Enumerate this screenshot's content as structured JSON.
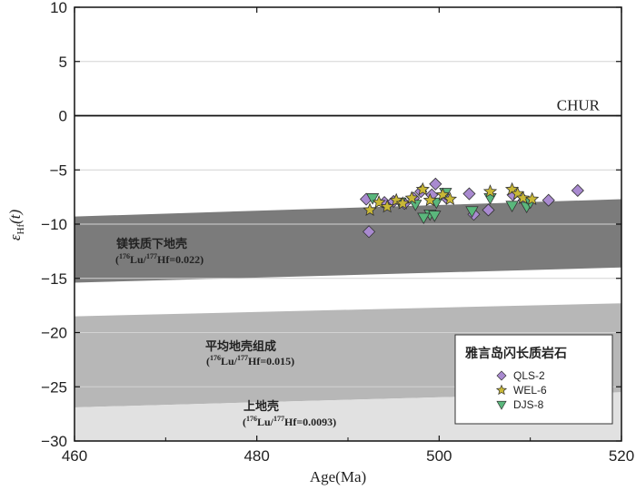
{
  "chart_data": {
    "type": "scatter",
    "xlabel": "Age(Ma)",
    "ylabel_symbol": "ε",
    "ylabel_sub": "Hf",
    "ylabel_suffix": "(t)",
    "xlim": [
      460,
      520
    ],
    "ylim": [
      -30,
      10
    ],
    "xticks": [
      "460",
      "480",
      "500",
      "520"
    ],
    "yticks": [
      "10",
      "5",
      "0",
      "−5",
      "−10",
      "−15",
      "−20",
      "−25",
      "−30"
    ],
    "grid": "horizontal",
    "reference_line": {
      "label": "CHUR",
      "y": 0
    },
    "bands": [
      {
        "name": "镁铁质下地壳",
        "ratio": "Hf=0.022)",
        "color": "#7b7b7b",
        "top": [
          [
            460,
            -9.3
          ],
          [
            520,
            -7.7
          ]
        ],
        "bottom": [
          [
            460,
            -15.4
          ],
          [
            520,
            -14.0
          ]
        ]
      },
      {
        "name": "平均地壳组成",
        "ratio": "Hf=0.015)",
        "color": "#b7b7b7",
        "top": [
          [
            460,
            -18.5
          ],
          [
            520,
            -17.3
          ]
        ],
        "bottom": [
          [
            460,
            -26.9
          ],
          [
            520,
            -25.5
          ]
        ]
      },
      {
        "name": "上地壳",
        "ratio": "Hf=0.0093)",
        "color": "#e1e1e1",
        "top": [
          [
            460,
            -26.9
          ],
          [
            520,
            -25.5
          ]
        ],
        "bottom": [
          [
            460,
            -30
          ],
          [
            520,
            -30
          ]
        ]
      }
    ],
    "legend": {
      "title": "雅言岛闪长质岩石",
      "placement": "bottom-right"
    },
    "series": [
      {
        "name": "QLS-2",
        "marker": "diamond",
        "color": "#a98ad0",
        "points": [
          [
            492.0,
            -7.7
          ],
          [
            492.3,
            -10.7
          ],
          [
            494.0,
            -8.0
          ],
          [
            495.0,
            -7.9
          ],
          [
            496.2,
            -8.1
          ],
          [
            497.2,
            -7.6
          ],
          [
            498.0,
            -7.0
          ],
          [
            499.2,
            -7.3
          ],
          [
            499.6,
            -6.3
          ],
          [
            500.8,
            -7.6
          ],
          [
            503.3,
            -7.2
          ],
          [
            503.8,
            -9.1
          ],
          [
            505.4,
            -8.7
          ],
          [
            508.1,
            -7.3
          ],
          [
            509.3,
            -7.8
          ],
          [
            512.0,
            -7.8
          ],
          [
            515.2,
            -6.9
          ]
        ]
      },
      {
        "name": "WEL-6",
        "marker": "star",
        "color": "#c9b836",
        "points": [
          [
            492.4,
            -8.7
          ],
          [
            493.4,
            -8.0
          ],
          [
            494.3,
            -8.4
          ],
          [
            495.3,
            -7.8
          ],
          [
            496.0,
            -8.1
          ],
          [
            497.0,
            -7.6
          ],
          [
            498.2,
            -6.8
          ],
          [
            499.0,
            -7.8
          ],
          [
            500.4,
            -7.3
          ],
          [
            501.2,
            -7.7
          ],
          [
            505.6,
            -7.0
          ],
          [
            508.0,
            -6.8
          ],
          [
            508.6,
            -7.2
          ],
          [
            509.2,
            -7.6
          ],
          [
            510.2,
            -7.7
          ]
        ]
      },
      {
        "name": "DJS-8",
        "marker": "triangle-down",
        "color": "#5ab77c",
        "points": [
          [
            492.7,
            -7.6
          ],
          [
            495.7,
            -8.0
          ],
          [
            497.4,
            -8.2
          ],
          [
            499.0,
            -9.1
          ],
          [
            499.5,
            -9.2
          ],
          [
            499.7,
            -8.0
          ],
          [
            500.7,
            -7.1
          ],
          [
            503.6,
            -8.8
          ],
          [
            505.6,
            -7.6
          ],
          [
            508.0,
            -8.3
          ],
          [
            509.6,
            -8.4
          ],
          [
            510.0,
            -8.0
          ],
          [
            498.3,
            -9.4
          ]
        ]
      }
    ]
  }
}
